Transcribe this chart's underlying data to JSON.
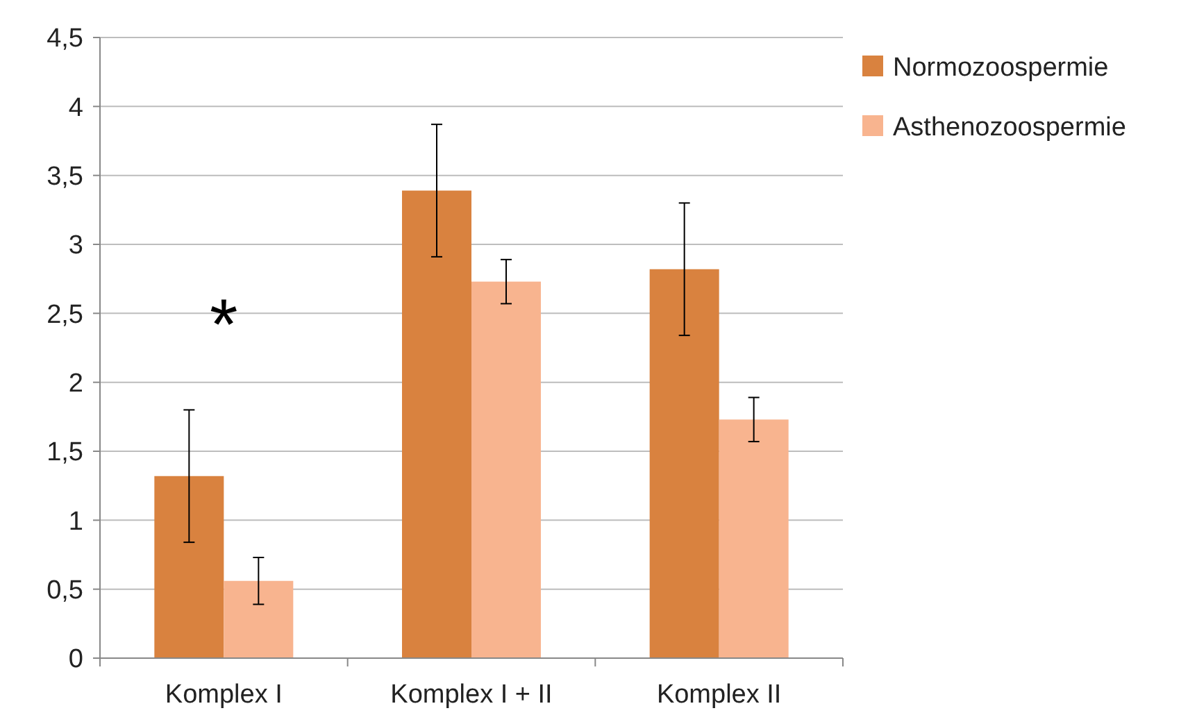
{
  "chart_data": {
    "type": "bar",
    "categories": [
      "Komplex I",
      "Komplex I + II",
      "Komplex II"
    ],
    "series": [
      {
        "name": "Normozoospermie",
        "color": "#d9823f",
        "values": [
          1.32,
          3.39,
          2.82
        ],
        "errors": [
          0.48,
          0.48,
          0.48
        ]
      },
      {
        "name": "Asthenozoospermie",
        "color": "#f8b48f",
        "values": [
          0.56,
          2.73,
          1.73
        ],
        "errors": [
          0.17,
          0.16,
          0.16
        ]
      }
    ],
    "ylim": [
      0,
      4.5
    ],
    "yticks": [
      0,
      {
        "value": 0.5,
        "label": "0,5"
      },
      1,
      {
        "value": 1.5,
        "label": "1,5"
      },
      2,
      {
        "value": 2.5,
        "label": "2,5"
      },
      3,
      {
        "value": 3.5,
        "label": "3,5"
      },
      4,
      {
        "value": 4.5,
        "label": "4,5"
      }
    ],
    "grid": "y",
    "legend": "top right",
    "annotations": [
      "*"
    ]
  }
}
